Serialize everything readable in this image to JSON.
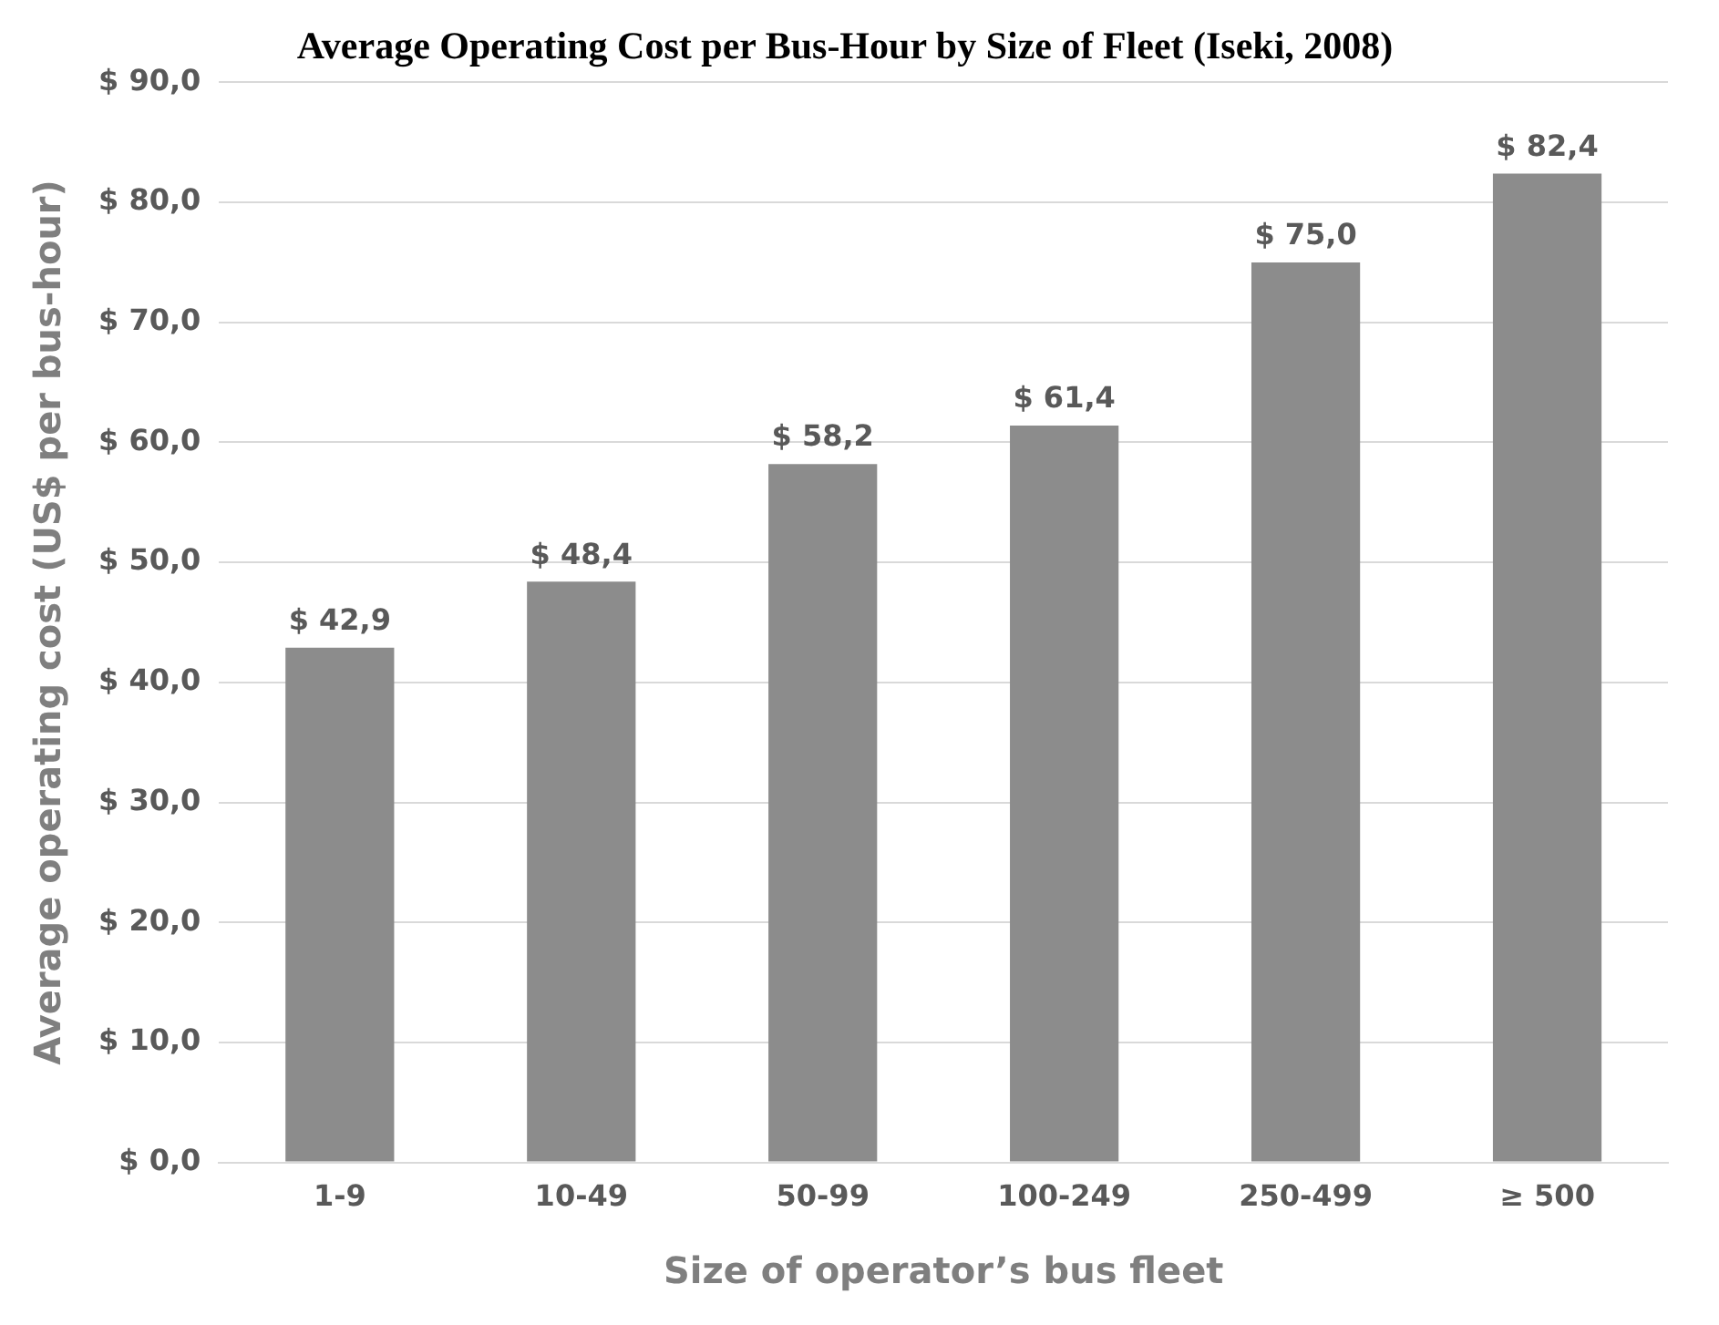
{
  "chart_data": {
    "type": "bar",
    "title": "Average Operating Cost per Bus-Hour by Size of Fleet (Iseki, 2008)",
    "xlabel": "Size of operator’s bus fleet",
    "ylabel": "Average operating cost (US$ per bus-hour)",
    "categories": [
      "1-9",
      "10-49",
      "50-99",
      "100-249",
      "250-499",
      "≥ 500"
    ],
    "values": [
      42.9,
      48.4,
      58.2,
      61.4,
      75.0,
      82.4
    ],
    "value_labels": [
      "$ 42,9",
      "$ 48,4",
      "$ 58,2",
      "$ 61,4",
      "$ 75,0",
      "$ 82,4"
    ],
    "color": "#8c8c8c",
    "ylim": [
      0,
      90
    ],
    "yticks": [
      {
        "value": 0,
        "label": "$ 0,0"
      },
      {
        "value": 10,
        "label": "$ 10,0"
      },
      {
        "value": 20,
        "label": "$ 20,0"
      },
      {
        "value": 30,
        "label": "$ 30,0"
      },
      {
        "value": 40,
        "label": "$ 40,0"
      },
      {
        "value": 50,
        "label": "$ 50,0"
      },
      {
        "value": 60,
        "label": "$ 60,0"
      },
      {
        "value": 70,
        "label": "$ 70,0"
      },
      {
        "value": 80,
        "label": "$ 80,0"
      },
      {
        "value": 90,
        "label": "$ 90,0"
      }
    ],
    "grid": "y"
  }
}
